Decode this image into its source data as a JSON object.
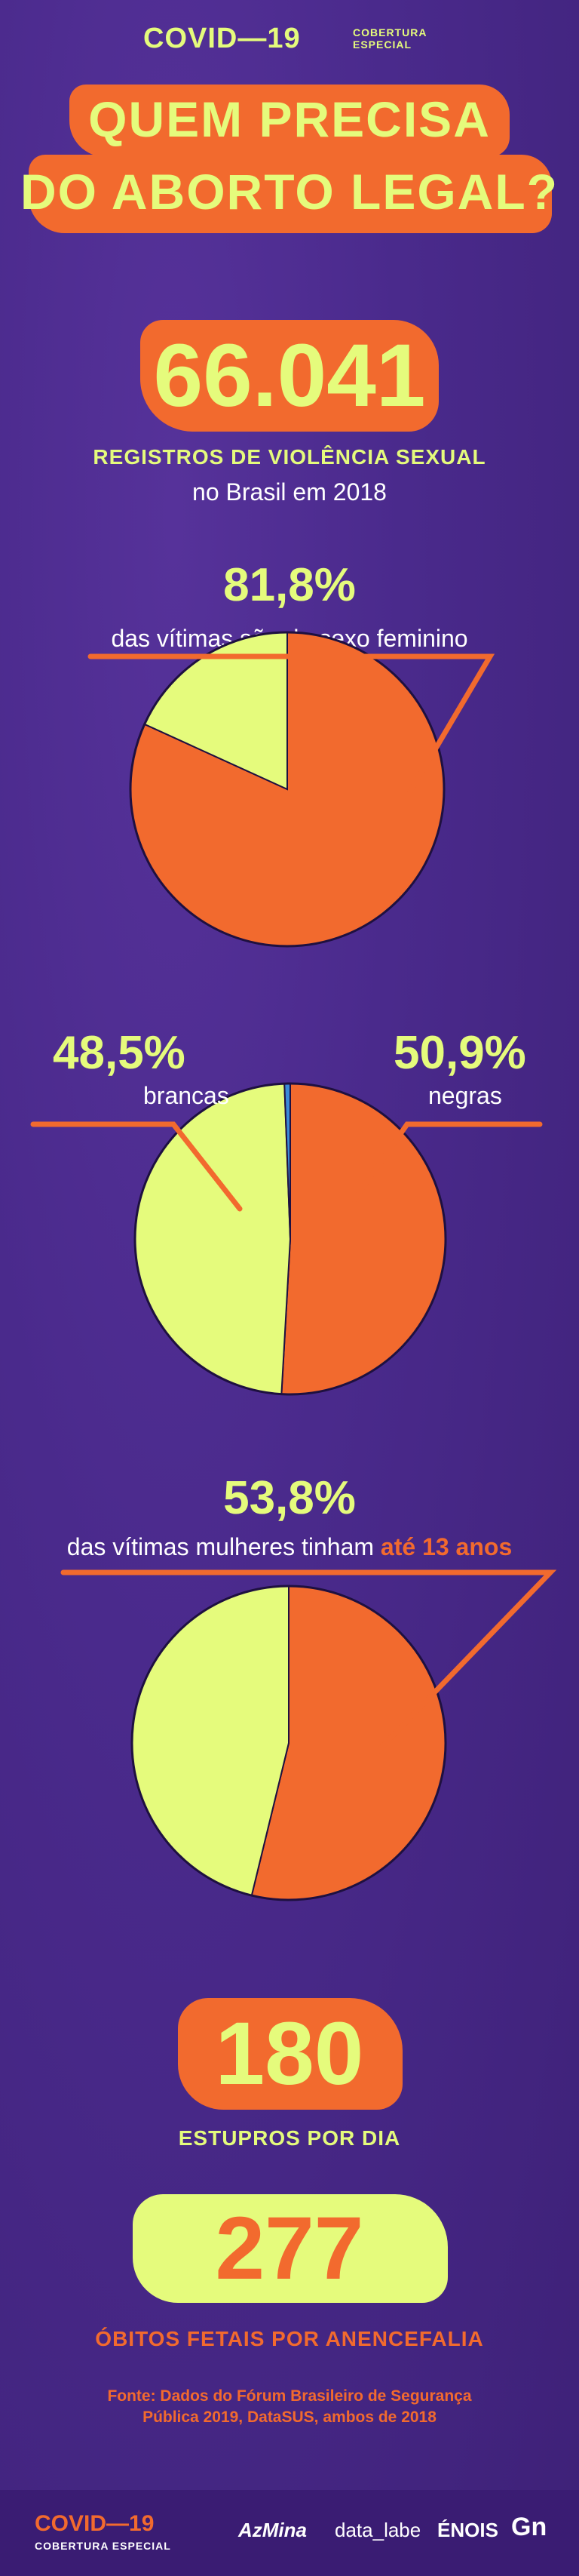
{
  "header": {
    "brand": "COVID—19",
    "subtitle_line1": "COBERTURA",
    "subtitle_line2": "ESPECIAL"
  },
  "title": {
    "line1": "QUEM PRECISA",
    "line2": "DO ABORTO LEGAL?"
  },
  "stat_total": {
    "value": "66.041",
    "label_bold": "REGISTROS DE VIOLÊNCIA SEXUAL",
    "label": "no Brasil em 2018"
  },
  "chart_data": [
    {
      "type": "pie",
      "headline": "81,8%",
      "caption": "das vítimas são do sexo feminino",
      "slices": [
        {
          "value": 81.8,
          "color": "#f26a2e"
        },
        {
          "value": 18.2,
          "color": "#e5fb7c"
        }
      ]
    },
    {
      "type": "pie",
      "slices": [
        {
          "name": "negras",
          "label": "50,9%",
          "value": 50.9,
          "color": "#f26a2e"
        },
        {
          "name": "brancas",
          "label": "48,5%",
          "value": 48.5,
          "color": "#e5fb7c"
        },
        {
          "value": 0.6,
          "color": "#3a8ad8"
        }
      ]
    },
    {
      "type": "pie",
      "headline": "53,8%",
      "caption_start": "das vítimas mulheres tinham ",
      "caption_highlight": "até 13 anos",
      "slices": [
        {
          "value": 53.8,
          "color": "#f26a2e"
        },
        {
          "value": 46.2,
          "color": "#e5fb7c"
        }
      ]
    }
  ],
  "stat_rapes": {
    "value": "180",
    "label": "ESTUPROS POR DIA"
  },
  "stat_fetal": {
    "value": "277",
    "label": "ÓBITOS FETAIS POR ANENCEFALIA"
  },
  "source": {
    "line1": "Fonte: Dados do Fórum Brasileiro de Segurança",
    "line2": "Pública 2019, DataSUS, ambos de 2018"
  },
  "footer": {
    "brand": "COVID—19",
    "subtitle": "COBERTURA ESPECIAL",
    "logos": [
      "AzMina",
      "data_labe",
      "ÉNOIS",
      "Gn"
    ]
  },
  "colors": {
    "orange": "#f26a2e",
    "lime": "#e5fb7c",
    "purple": "#4a2a8c",
    "blue": "#3a8ad8"
  }
}
